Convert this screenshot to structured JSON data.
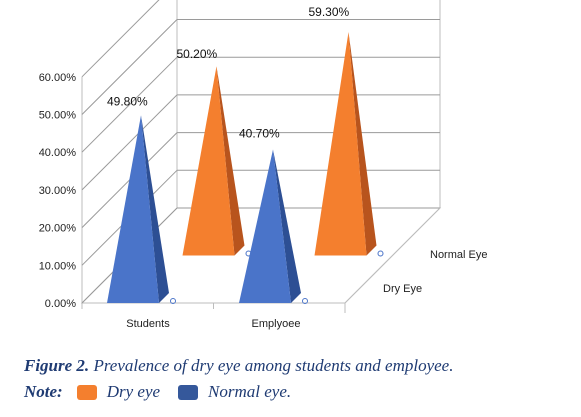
{
  "chart_data": {
    "type": "bar",
    "style": "3d-pyramid",
    "categories": [
      "Students",
      "Emplyoee"
    ],
    "series": [
      {
        "name": "Normal Eye",
        "values": [
          49.8,
          40.7
        ],
        "color": "#4a74c9"
      },
      {
        "name": "Dry Eye",
        "values": [
          50.2,
          59.3
        ],
        "color": "#f47f2e"
      }
    ],
    "data_labels": [
      "49.80%",
      "50.20%",
      "40.70%",
      "59.30%"
    ],
    "y_ticks": [
      "0.00%",
      "10.00%",
      "20.00%",
      "30.00%",
      "40.00%",
      "50.00%",
      "60.00%"
    ],
    "ylim": [
      0,
      60
    ],
    "grid": true,
    "depth_labels": [
      "Normal Eye",
      "Dry Eye"
    ]
  },
  "caption": {
    "label": "Figure 2.",
    "text": "Prevalence of dry eye among students and employee."
  },
  "note": {
    "label": "Note:",
    "dry": "Dry eye",
    "normal": "Normal eye."
  },
  "colors": {
    "dry": "#f47f2e",
    "normal": "#4a74c9",
    "legend_normal": "#35589b",
    "caption": "#1f3b73"
  }
}
